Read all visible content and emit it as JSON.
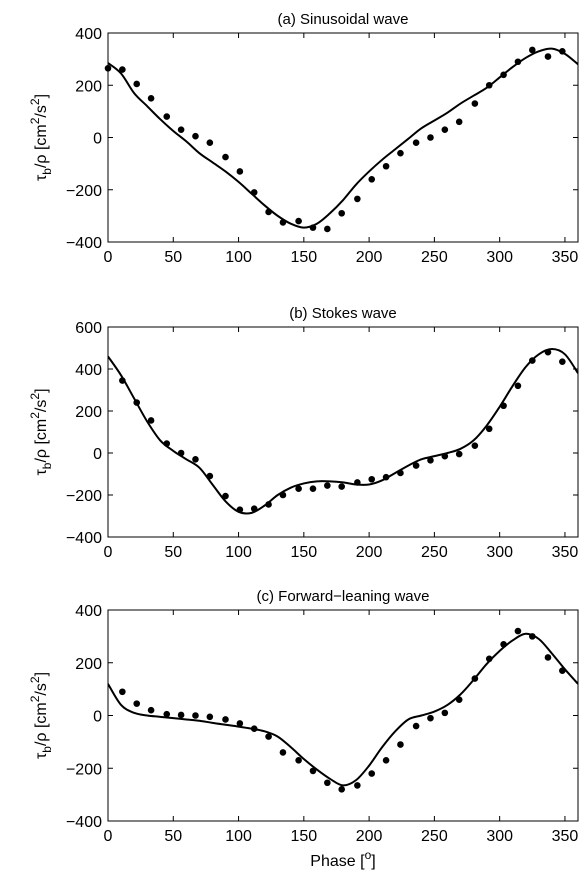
{
  "chart_data": [
    {
      "type": "line",
      "title": "(a) Sinusoidal wave",
      "xlabel": "",
      "ylabel": {
        "main": "τ",
        "sub": "b",
        "rest": "/ρ [cm",
        "sup1": "2",
        "mid": "/s",
        "sup2": "2",
        "end": "]"
      },
      "xlim": [
        0,
        360
      ],
      "ylim": [
        -400,
        400
      ],
      "xticks": [
        0,
        50,
        100,
        150,
        200,
        250,
        300,
        350
      ],
      "yticks": [
        -400,
        -200,
        0,
        200,
        400
      ],
      "xtick_labels": [
        "0",
        "50",
        "100",
        "150",
        "200",
        "250",
        "300",
        "350"
      ],
      "ytick_labels": [
        "−400",
        "−200",
        "0",
        "200",
        "400"
      ],
      "grid": false,
      "series": [
        {
          "style": "line",
          "x": [
            0,
            10,
            20,
            30,
            40,
            50,
            60,
            70,
            80,
            90,
            100,
            110,
            120,
            130,
            140,
            150,
            160,
            170,
            180,
            190,
            200,
            210,
            220,
            230,
            240,
            250,
            260,
            270,
            280,
            290,
            300,
            310,
            320,
            330,
            340,
            350,
            360
          ],
          "y": [
            285,
            245,
            170,
            120,
            70,
            25,
            -15,
            -60,
            -95,
            -130,
            -170,
            -215,
            -260,
            -300,
            -330,
            -345,
            -330,
            -290,
            -240,
            -180,
            -130,
            -85,
            -45,
            -5,
            35,
            65,
            95,
            130,
            160,
            190,
            230,
            270,
            305,
            330,
            340,
            320,
            280
          ]
        },
        {
          "style": "markers",
          "x": [
            0,
            11,
            22,
            33,
            45,
            56,
            67,
            78,
            90,
            101,
            112,
            123,
            134,
            146,
            157,
            168,
            179,
            191,
            202,
            213,
            224,
            236,
            247,
            258,
            269,
            281,
            292,
            303,
            314,
            325,
            337,
            348
          ],
          "y": [
            265,
            260,
            205,
            150,
            80,
            30,
            5,
            -20,
            -75,
            -130,
            -210,
            -285,
            -325,
            -320,
            -345,
            -350,
            -290,
            -235,
            -160,
            -110,
            -60,
            -20,
            0,
            30,
            60,
            130,
            200,
            240,
            290,
            335,
            310,
            330
          ]
        }
      ]
    },
    {
      "type": "line",
      "title": "(b) Stokes wave",
      "xlabel": "",
      "ylabel": {
        "main": "τ",
        "sub": "b",
        "rest": "/ρ [cm",
        "sup1": "2",
        "mid": "/s",
        "sup2": "2",
        "end": "]"
      },
      "xlim": [
        0,
        360
      ],
      "ylim": [
        -400,
        600
      ],
      "xticks": [
        0,
        50,
        100,
        150,
        200,
        250,
        300,
        350
      ],
      "yticks": [
        -400,
        -200,
        0,
        200,
        400,
        600
      ],
      "xtick_labels": [
        "0",
        "50",
        "100",
        "150",
        "200",
        "250",
        "300",
        "350"
      ],
      "ytick_labels": [
        "−400",
        "−200",
        "0",
        "200",
        "400",
        "600"
      ],
      "grid": false,
      "series": [
        {
          "style": "line",
          "x": [
            0,
            10,
            20,
            30,
            40,
            50,
            60,
            70,
            80,
            90,
            100,
            110,
            120,
            130,
            140,
            150,
            160,
            170,
            180,
            190,
            200,
            210,
            220,
            230,
            240,
            250,
            260,
            270,
            280,
            290,
            300,
            310,
            320,
            330,
            340,
            350,
            360
          ],
          "y": [
            460,
            370,
            260,
            150,
            60,
            10,
            -30,
            -70,
            -150,
            -230,
            -280,
            -285,
            -250,
            -200,
            -165,
            -145,
            -135,
            -135,
            -140,
            -150,
            -150,
            -130,
            -95,
            -60,
            -30,
            -15,
            0,
            20,
            60,
            130,
            220,
            320,
            410,
            470,
            495,
            470,
            380
          ]
        },
        {
          "style": "markers",
          "x": [
            11,
            22,
            33,
            45,
            56,
            67,
            78,
            90,
            101,
            112,
            123,
            134,
            146,
            157,
            168,
            179,
            191,
            202,
            213,
            224,
            236,
            247,
            258,
            269,
            281,
            292,
            303,
            314,
            325,
            337,
            348
          ],
          "y": [
            345,
            240,
            155,
            45,
            0,
            -30,
            -110,
            -205,
            -270,
            -265,
            -245,
            -200,
            -170,
            -170,
            -155,
            -160,
            -140,
            -125,
            -115,
            -95,
            -60,
            -35,
            -15,
            -5,
            35,
            115,
            225,
            320,
            440,
            480,
            435
          ]
        }
      ]
    },
    {
      "type": "line",
      "title": "(c) Forward−leaning wave",
      "xlabel": {
        "text": "Phase [",
        "sup": "o",
        "end": "]"
      },
      "ylabel": {
        "main": "τ",
        "sub": "b",
        "rest": "/ρ [cm",
        "sup1": "2",
        "mid": "/s",
        "sup2": "2",
        "end": "]"
      },
      "xlim": [
        0,
        360
      ],
      "ylim": [
        -400,
        400
      ],
      "xticks": [
        0,
        50,
        100,
        150,
        200,
        250,
        300,
        350
      ],
      "yticks": [
        -400,
        -200,
        0,
        200,
        400
      ],
      "xtick_labels": [
        "0",
        "50",
        "100",
        "150",
        "200",
        "250",
        "300",
        "350"
      ],
      "ytick_labels": [
        "−400",
        "−200",
        "0",
        "200",
        "400"
      ],
      "grid": false,
      "series": [
        {
          "style": "line",
          "x": [
            0,
            10,
            20,
            30,
            40,
            50,
            60,
            70,
            80,
            90,
            100,
            110,
            120,
            130,
            140,
            150,
            160,
            170,
            180,
            190,
            200,
            210,
            220,
            230,
            240,
            250,
            260,
            270,
            280,
            290,
            300,
            310,
            320,
            330,
            340,
            350,
            360
          ],
          "y": [
            120,
            40,
            10,
            0,
            -5,
            -10,
            -15,
            -20,
            -28,
            -35,
            -42,
            -50,
            -60,
            -80,
            -120,
            -165,
            -205,
            -240,
            -265,
            -245,
            -190,
            -120,
            -60,
            -15,
            0,
            15,
            40,
            80,
            135,
            195,
            245,
            285,
            310,
            290,
            235,
            175,
            120
          ]
        },
        {
          "style": "markers",
          "x": [
            11,
            22,
            33,
            45,
            56,
            67,
            78,
            90,
            101,
            112,
            123,
            134,
            146,
            157,
            168,
            179,
            191,
            202,
            213,
            224,
            236,
            247,
            258,
            269,
            281,
            292,
            303,
            314,
            325,
            337,
            348
          ],
          "y": [
            90,
            45,
            20,
            5,
            2,
            0,
            -5,
            -15,
            -30,
            -50,
            -80,
            -140,
            -170,
            -210,
            -255,
            -280,
            -265,
            -220,
            -170,
            -110,
            -40,
            -10,
            10,
            60,
            140,
            215,
            270,
            320,
            300,
            220,
            170
          ]
        }
      ]
    }
  ]
}
